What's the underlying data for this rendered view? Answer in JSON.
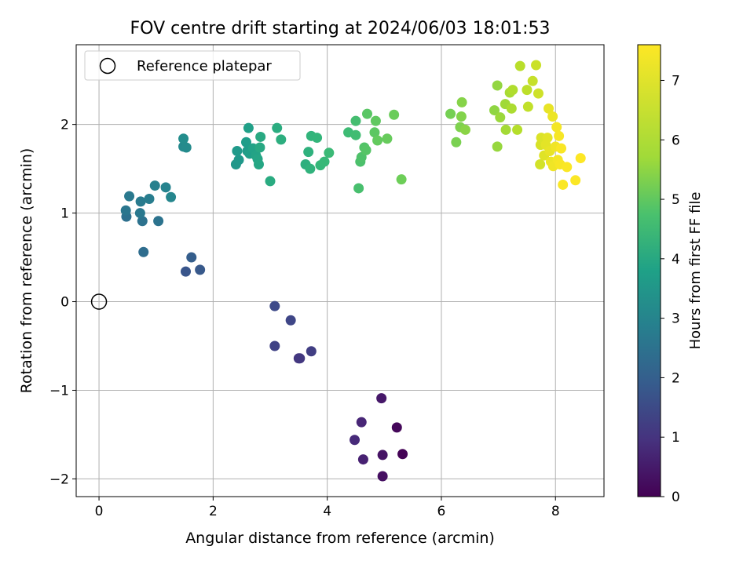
{
  "chart_data": {
    "type": "scatter",
    "title": "FOV centre drift starting at 2024/06/03 18:01:53",
    "xlabel": "Angular distance from reference (arcmin)",
    "ylabel": "Rotation from reference (arcmin)",
    "colorbar_label": "Hours from first FF file",
    "xlim": [
      -0.4,
      8.85
    ],
    "ylim": [
      -2.2,
      2.9
    ],
    "clim": [
      0,
      7.6
    ],
    "x_ticks": [
      0,
      2,
      4,
      6,
      8
    ],
    "x_tick_labels": [
      "0",
      "2",
      "4",
      "6",
      "8"
    ],
    "y_ticks": [
      -2,
      -1,
      0,
      1,
      2
    ],
    "y_tick_labels": [
      "−2",
      "−1",
      "0",
      "1",
      "2"
    ],
    "colorbar_ticks": [
      0,
      1,
      2,
      3,
      4,
      5,
      6,
      7
    ],
    "colorbar_tick_labels": [
      "0",
      "1",
      "2",
      "3",
      "4",
      "5",
      "6",
      "7"
    ],
    "colormap": "viridis",
    "grid": true,
    "legend": {
      "position": "top-left",
      "entries": [
        "Reference platepar"
      ]
    },
    "reference_point": {
      "x": 0,
      "y": 0,
      "label": "Reference platepar"
    },
    "series": [
      {
        "points": [
          {
            "x": 5.32,
            "y": -1.72,
            "h": 0.05
          },
          {
            "x": 5.22,
            "y": -1.42,
            "h": 0.15
          },
          {
            "x": 4.97,
            "y": -1.97,
            "h": 0.3
          },
          {
            "x": 4.97,
            "y": -1.73,
            "h": 0.4
          },
          {
            "x": 4.95,
            "y": -1.09,
            "h": 0.5
          },
          {
            "x": 4.63,
            "y": -1.78,
            "h": 0.7
          },
          {
            "x": 4.6,
            "y": -1.36,
            "h": 0.8
          },
          {
            "x": 4.48,
            "y": -1.56,
            "h": 0.9
          },
          {
            "x": 3.5,
            "y": -0.64,
            "h": 1.2
          },
          {
            "x": 3.52,
            "y": -0.64,
            "h": 1.25
          },
          {
            "x": 3.72,
            "y": -0.56,
            "h": 1.4
          },
          {
            "x": 3.08,
            "y": -0.5,
            "h": 1.5
          },
          {
            "x": 3.36,
            "y": -0.21,
            "h": 1.6
          },
          {
            "x": 3.08,
            "y": -0.05,
            "h": 1.7
          },
          {
            "x": 1.52,
            "y": 0.34,
            "h": 2.0
          },
          {
            "x": 1.77,
            "y": 0.36,
            "h": 2.1
          },
          {
            "x": 1.62,
            "y": 0.5,
            "h": 2.25
          },
          {
            "x": 0.78,
            "y": 0.56,
            "h": 2.7
          },
          {
            "x": 0.48,
            "y": 0.96,
            "h": 2.8
          },
          {
            "x": 0.76,
            "y": 0.91,
            "h": 2.85
          },
          {
            "x": 1.04,
            "y": 0.91,
            "h": 2.9
          },
          {
            "x": 0.47,
            "y": 1.03,
            "h": 3.0
          },
          {
            "x": 0.72,
            "y": 1.0,
            "h": 3.05
          },
          {
            "x": 0.53,
            "y": 1.19,
            "h": 3.1
          },
          {
            "x": 0.73,
            "y": 1.13,
            "h": 3.15
          },
          {
            "x": 0.88,
            "y": 1.16,
            "h": 3.2
          },
          {
            "x": 0.98,
            "y": 1.31,
            "h": 3.3
          },
          {
            "x": 1.17,
            "y": 1.29,
            "h": 3.4
          },
          {
            "x": 1.26,
            "y": 1.18,
            "h": 3.5
          },
          {
            "x": 1.48,
            "y": 1.75,
            "h": 3.6
          },
          {
            "x": 1.53,
            "y": 1.74,
            "h": 3.65
          },
          {
            "x": 1.48,
            "y": 1.84,
            "h": 3.7
          },
          {
            "x": 2.4,
            "y": 1.55,
            "h": 4.0
          },
          {
            "x": 2.45,
            "y": 1.6,
            "h": 4.05
          },
          {
            "x": 2.42,
            "y": 1.7,
            "h": 4.1
          },
          {
            "x": 2.6,
            "y": 1.7,
            "h": 4.15
          },
          {
            "x": 2.58,
            "y": 1.8,
            "h": 4.2
          },
          {
            "x": 2.64,
            "y": 1.67,
            "h": 4.25
          },
          {
            "x": 2.62,
            "y": 1.96,
            "h": 4.3
          },
          {
            "x": 2.7,
            "y": 1.73,
            "h": 4.35
          },
          {
            "x": 2.75,
            "y": 1.65,
            "h": 4.4
          },
          {
            "x": 2.78,
            "y": 1.61,
            "h": 4.45
          },
          {
            "x": 2.8,
            "y": 1.55,
            "h": 4.5
          },
          {
            "x": 2.82,
            "y": 1.74,
            "h": 4.55
          },
          {
            "x": 2.83,
            "y": 1.86,
            "h": 4.6
          },
          {
            "x": 3.0,
            "y": 1.36,
            "h": 4.65
          },
          {
            "x": 3.12,
            "y": 1.96,
            "h": 4.7
          },
          {
            "x": 3.19,
            "y": 1.83,
            "h": 4.75
          },
          {
            "x": 3.62,
            "y": 1.55,
            "h": 4.8
          },
          {
            "x": 3.67,
            "y": 1.69,
            "h": 4.85
          },
          {
            "x": 3.7,
            "y": 1.5,
            "h": 4.9
          },
          {
            "x": 3.72,
            "y": 1.87,
            "h": 4.95
          },
          {
            "x": 3.82,
            "y": 1.85,
            "h": 5.0
          },
          {
            "x": 3.88,
            "y": 1.54,
            "h": 5.05
          },
          {
            "x": 3.95,
            "y": 1.58,
            "h": 5.1
          },
          {
            "x": 4.03,
            "y": 1.68,
            "h": 5.15
          },
          {
            "x": 4.37,
            "y": 1.91,
            "h": 5.2
          },
          {
            "x": 4.5,
            "y": 1.88,
            "h": 5.25
          },
          {
            "x": 4.5,
            "y": 2.04,
            "h": 5.3
          },
          {
            "x": 4.55,
            "y": 1.28,
            "h": 5.35
          },
          {
            "x": 4.58,
            "y": 1.58,
            "h": 5.4
          },
          {
            "x": 4.6,
            "y": 1.63,
            "h": 5.45
          },
          {
            "x": 4.65,
            "y": 1.74,
            "h": 5.5
          },
          {
            "x": 4.68,
            "y": 1.71,
            "h": 5.55
          },
          {
            "x": 4.7,
            "y": 2.12,
            "h": 5.6
          },
          {
            "x": 4.83,
            "y": 1.91,
            "h": 5.65
          },
          {
            "x": 4.85,
            "y": 2.04,
            "h": 5.7
          },
          {
            "x": 4.88,
            "y": 1.82,
            "h": 5.75
          },
          {
            "x": 5.05,
            "y": 1.84,
            "h": 5.8
          },
          {
            "x": 5.17,
            "y": 2.11,
            "h": 5.85
          },
          {
            "x": 5.3,
            "y": 1.38,
            "h": 5.9
          },
          {
            "x": 6.16,
            "y": 2.12,
            "h": 6.0
          },
          {
            "x": 6.26,
            "y": 1.8,
            "h": 6.05
          },
          {
            "x": 6.33,
            "y": 1.97,
            "h": 6.1
          },
          {
            "x": 6.35,
            "y": 2.09,
            "h": 6.15
          },
          {
            "x": 6.36,
            "y": 2.25,
            "h": 6.2
          },
          {
            "x": 6.42,
            "y": 1.94,
            "h": 6.25
          },
          {
            "x": 6.93,
            "y": 2.16,
            "h": 6.3
          },
          {
            "x": 6.98,
            "y": 2.44,
            "h": 6.35
          },
          {
            "x": 6.98,
            "y": 1.75,
            "h": 6.4
          },
          {
            "x": 7.03,
            "y": 2.08,
            "h": 6.45
          },
          {
            "x": 7.12,
            "y": 2.23,
            "h": 6.5
          },
          {
            "x": 7.13,
            "y": 1.94,
            "h": 6.55
          },
          {
            "x": 7.2,
            "y": 2.36,
            "h": 6.6
          },
          {
            "x": 7.23,
            "y": 2.18,
            "h": 6.65
          },
          {
            "x": 7.25,
            "y": 2.39,
            "h": 6.7
          },
          {
            "x": 7.33,
            "y": 1.94,
            "h": 6.75
          },
          {
            "x": 7.38,
            "y": 2.66,
            "h": 6.8
          },
          {
            "x": 7.5,
            "y": 2.39,
            "h": 6.85
          },
          {
            "x": 7.52,
            "y": 2.2,
            "h": 6.9
          },
          {
            "x": 7.6,
            "y": 2.49,
            "h": 6.95
          },
          {
            "x": 7.66,
            "y": 2.67,
            "h": 7.0
          },
          {
            "x": 7.7,
            "y": 2.35,
            "h": 7.05
          },
          {
            "x": 7.73,
            "y": 1.55,
            "h": 7.1
          },
          {
            "x": 7.74,
            "y": 1.77,
            "h": 7.15
          },
          {
            "x": 7.75,
            "y": 1.85,
            "h": 7.2
          },
          {
            "x": 7.8,
            "y": 1.65,
            "h": 7.25
          },
          {
            "x": 7.83,
            "y": 1.77,
            "h": 7.3
          },
          {
            "x": 7.86,
            "y": 1.85,
            "h": 7.3
          },
          {
            "x": 7.88,
            "y": 2.18,
            "h": 7.35
          },
          {
            "x": 7.9,
            "y": 1.7,
            "h": 7.35
          },
          {
            "x": 7.92,
            "y": 1.58,
            "h": 7.4
          },
          {
            "x": 7.95,
            "y": 2.09,
            "h": 7.4
          },
          {
            "x": 7.96,
            "y": 1.53,
            "h": 7.45
          },
          {
            "x": 8.0,
            "y": 1.75,
            "h": 7.45
          },
          {
            "x": 8.02,
            "y": 1.97,
            "h": 7.5
          },
          {
            "x": 8.04,
            "y": 1.6,
            "h": 7.5
          },
          {
            "x": 8.06,
            "y": 1.87,
            "h": 7.52
          },
          {
            "x": 8.08,
            "y": 1.55,
            "h": 7.53
          },
          {
            "x": 8.1,
            "y": 1.73,
            "h": 7.55
          },
          {
            "x": 8.13,
            "y": 1.32,
            "h": 7.56
          },
          {
            "x": 8.2,
            "y": 1.52,
            "h": 7.57
          },
          {
            "x": 8.35,
            "y": 1.37,
            "h": 7.58
          },
          {
            "x": 8.44,
            "y": 1.62,
            "h": 7.6
          }
        ]
      }
    ]
  }
}
